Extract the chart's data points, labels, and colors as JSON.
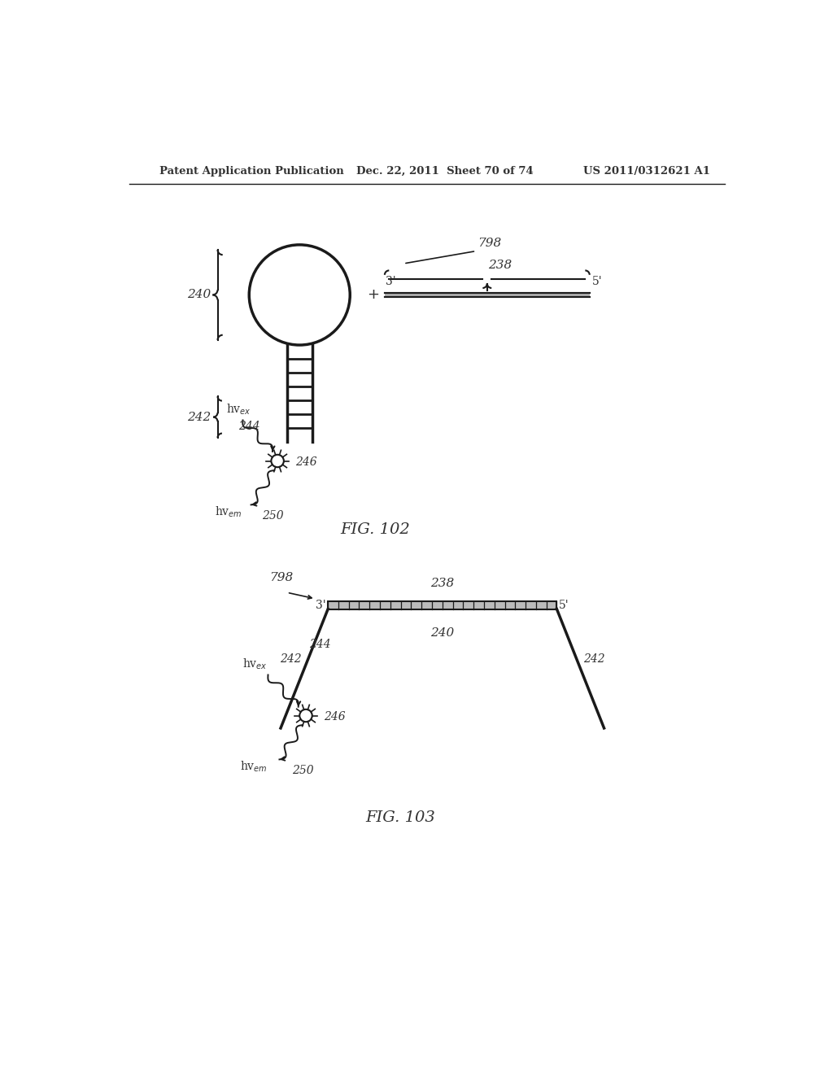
{
  "bg_color": "#ffffff",
  "header_left": "Patent Application Publication",
  "header_mid": "Dec. 22, 2011  Sheet 70 of 74",
  "header_right": "US 2011/0312621 A1",
  "fig102_label": "FIG. 102",
  "fig103_label": "FIG. 103",
  "line_color": "#1a1a1a",
  "text_color": "#333333"
}
